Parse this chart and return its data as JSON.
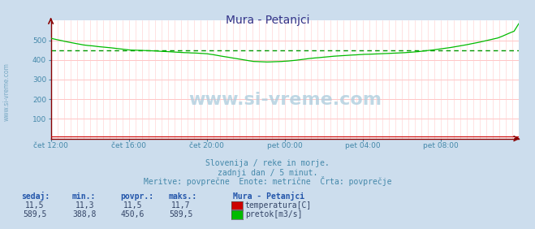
{
  "title": "Mura - Petanjci",
  "bg_color": "#ccdded",
  "plot_bg_color": "#ffffff",
  "grid_color_h": "#ffbbbb",
  "grid_color_v": "#ffcccc",
  "text_color": "#4488aa",
  "col_header_color": "#2255aa",
  "ylim": [
    0,
    600
  ],
  "yticks": [
    100,
    200,
    300,
    400,
    500
  ],
  "xlim": [
    0,
    288
  ],
  "xtick_labels": [
    "čet 12:00",
    "čet 16:00",
    "čet 20:00",
    "pet 00:00",
    "pet 04:00",
    "pet 08:00"
  ],
  "xtick_positions": [
    0,
    48,
    96,
    144,
    192,
    240
  ],
  "avg_flow": 450.6,
  "flow_color": "#00bb00",
  "avg_line_color": "#009900",
  "temp_color": "#cc0000",
  "axis_color": "#880000",
  "footer_lines": [
    "Slovenija / reke in morje.",
    "zadnji dan / 5 minut.",
    "Meritve: povprečne  Enote: metrične  Črta: povprečje"
  ],
  "legend_title": "Mura - Petanjci",
  "legend_items": [
    {
      "label": "temperatura[C]",
      "color": "#cc0000"
    },
    {
      "label": "pretok[m3/s]",
      "color": "#00bb00"
    }
  ],
  "table_headers": [
    "sedaj:",
    "min.:",
    "povpr.:",
    "maks.:"
  ],
  "table_data": [
    [
      "11,5",
      "11,3",
      "11,5",
      "11,7"
    ],
    [
      "589,5",
      "388,8",
      "450,6",
      "589,5"
    ]
  ],
  "watermark": "www.si-vreme.com",
  "side_text": "www.si-vreme.com"
}
